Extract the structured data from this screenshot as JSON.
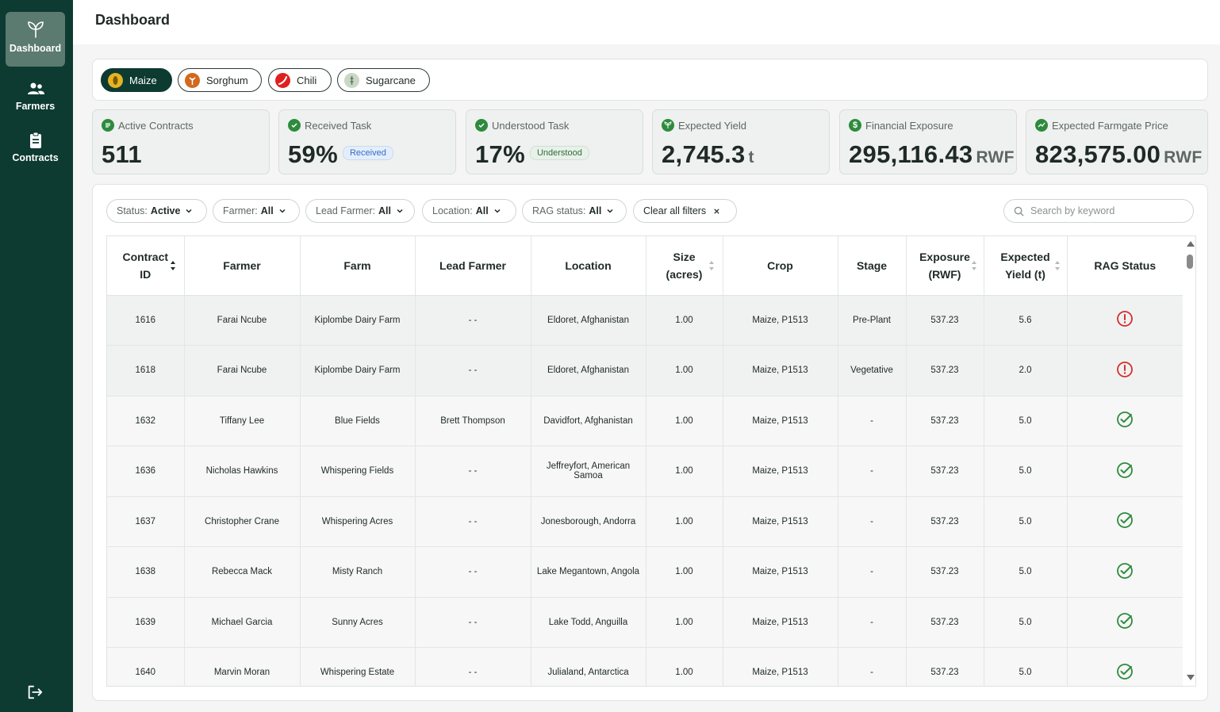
{
  "sidebar": {
    "items": [
      {
        "label": "Dashboard",
        "icon": "sprout-icon",
        "active": true
      },
      {
        "label": "Farmers",
        "icon": "users-icon",
        "active": false
      },
      {
        "label": "Contracts",
        "icon": "clipboard-icon",
        "active": false
      }
    ],
    "logout_icon": "logout-icon"
  },
  "header": {
    "title": "Dashboard"
  },
  "crops": [
    {
      "label": "Maize",
      "active": true,
      "icon": "maize-icon",
      "color": "#e6b323"
    },
    {
      "label": "Sorghum",
      "active": false,
      "icon": "sorghum-icon",
      "color": "#d2691e"
    },
    {
      "label": "Chili",
      "active": false,
      "icon": "chili-icon",
      "color": "#e02020"
    },
    {
      "label": "Sugarcane",
      "active": false,
      "icon": "sugarcane-icon",
      "color": "#9fb89a"
    }
  ],
  "stats": {
    "active_contracts": {
      "label": "Active Contracts",
      "value": "511"
    },
    "received_task": {
      "label": "Received Task",
      "value": "59%",
      "badge": "Received"
    },
    "understood_task": {
      "label": "Understood Task",
      "value": "17%",
      "badge": "Understood"
    },
    "expected_yield": {
      "label": "Expected Yield",
      "value": "2,745.3",
      "unit": "t"
    },
    "financial_exposure": {
      "label": "Financial Exposure",
      "value": "295,116.43",
      "unit": "RWF"
    },
    "farmgate_price": {
      "label": "Expected Farmgate Price",
      "value": "823,575.00",
      "unit": "RWF"
    }
  },
  "filters": {
    "status": {
      "label": "Status:",
      "value": "Active"
    },
    "farmer": {
      "label": "Farmer:",
      "value": "All"
    },
    "lead_farmer": {
      "label": "Lead Farmer:",
      "value": "All"
    },
    "location": {
      "label": "Location:",
      "value": "All"
    },
    "rag_status": {
      "label": "RAG status:",
      "value": "All"
    },
    "clear": "Clear all filters",
    "search_placeholder": "Search by keyword"
  },
  "table": {
    "headers": {
      "contract_id_1": "Contract",
      "contract_id_2": "ID",
      "farmer": "Farmer",
      "farm": "Farm",
      "lead_farmer": "Lead Farmer",
      "location": "Location",
      "size_1": "Size",
      "size_2": "(acres)",
      "crop": "Crop",
      "stage": "Stage",
      "exposure_1": "Exposure",
      "exposure_2": "(RWF)",
      "yield_1": "Expected",
      "yield_2": "Yield (t)",
      "rag": "RAG Status"
    },
    "colors": {
      "alert": "#d32f2f",
      "ok": "#2e8b3e"
    },
    "rows": [
      {
        "id": "1616",
        "farmer": "Farai Ncube",
        "farm": "Kiplombe Dairy Farm",
        "lead": "- -",
        "location": "Eldoret, Afghanistan",
        "size": "1.00",
        "crop": "Maize, P1513",
        "stage": "Pre-Plant",
        "exposure": "537.23",
        "yield": "5.6",
        "rag": "alert"
      },
      {
        "id": "1618",
        "farmer": "Farai Ncube",
        "farm": "Kiplombe Dairy Farm",
        "lead": "- -",
        "location": "Eldoret, Afghanistan",
        "size": "1.00",
        "crop": "Maize, P1513",
        "stage": "Vegetative",
        "exposure": "537.23",
        "yield": "2.0",
        "rag": "alert"
      },
      {
        "id": "1632",
        "farmer": "Tiffany Lee",
        "farm": "Blue Fields",
        "lead": "Brett Thompson",
        "location": "Davidfort, Afghanistan",
        "size": "1.00",
        "crop": "Maize, P1513",
        "stage": "-",
        "exposure": "537.23",
        "yield": "5.0",
        "rag": "ok"
      },
      {
        "id": "1636",
        "farmer": "Nicholas Hawkins",
        "farm": "Whispering Fields",
        "lead": "- -",
        "location": "Jeffreyfort, American Samoa",
        "size": "1.00",
        "crop": "Maize, P1513",
        "stage": "-",
        "exposure": "537.23",
        "yield": "5.0",
        "rag": "ok"
      },
      {
        "id": "1637",
        "farmer": "Christopher Crane",
        "farm": "Whispering Acres",
        "lead": "- -",
        "location": "Jonesborough, Andorra",
        "size": "1.00",
        "crop": "Maize, P1513",
        "stage": "-",
        "exposure": "537.23",
        "yield": "5.0",
        "rag": "ok"
      },
      {
        "id": "1638",
        "farmer": "Rebecca Mack",
        "farm": "Misty Ranch",
        "lead": "- -",
        "location": "Lake Megantown, Angola",
        "size": "1.00",
        "crop": "Maize, P1513",
        "stage": "-",
        "exposure": "537.23",
        "yield": "5.0",
        "rag": "ok"
      },
      {
        "id": "1639",
        "farmer": "Michael Garcia",
        "farm": "Sunny Acres",
        "lead": "- -",
        "location": "Lake Todd, Anguilla",
        "size": "1.00",
        "crop": "Maize, P1513",
        "stage": "-",
        "exposure": "537.23",
        "yield": "5.0",
        "rag": "ok"
      },
      {
        "id": "1640",
        "farmer": "Marvin Moran",
        "farm": "Whispering Estate",
        "lead": "- -",
        "location": "Julialand, Antarctica",
        "size": "1.00",
        "crop": "Maize, P1513",
        "stage": "-",
        "exposure": "537.23",
        "yield": "5.0",
        "rag": "ok"
      }
    ]
  }
}
